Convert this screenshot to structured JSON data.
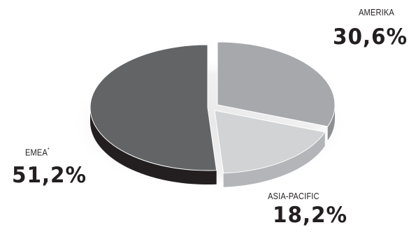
{
  "chart_data": {
    "type": "pie",
    "title": "",
    "slices": [
      {
        "label": "AMERIKA",
        "value": 30.6,
        "display": "30,6%",
        "color": "#a6a8ab"
      },
      {
        "label": "ASIA-PACIFIC",
        "value": 18.2,
        "display": "18,2%",
        "color": "#d1d3d4"
      },
      {
        "label": "EMEA",
        "marker": "*",
        "value": 51.2,
        "display": "51,2%",
        "color": "#636466"
      }
    ],
    "style": "3d-exploded",
    "legend": "none"
  }
}
